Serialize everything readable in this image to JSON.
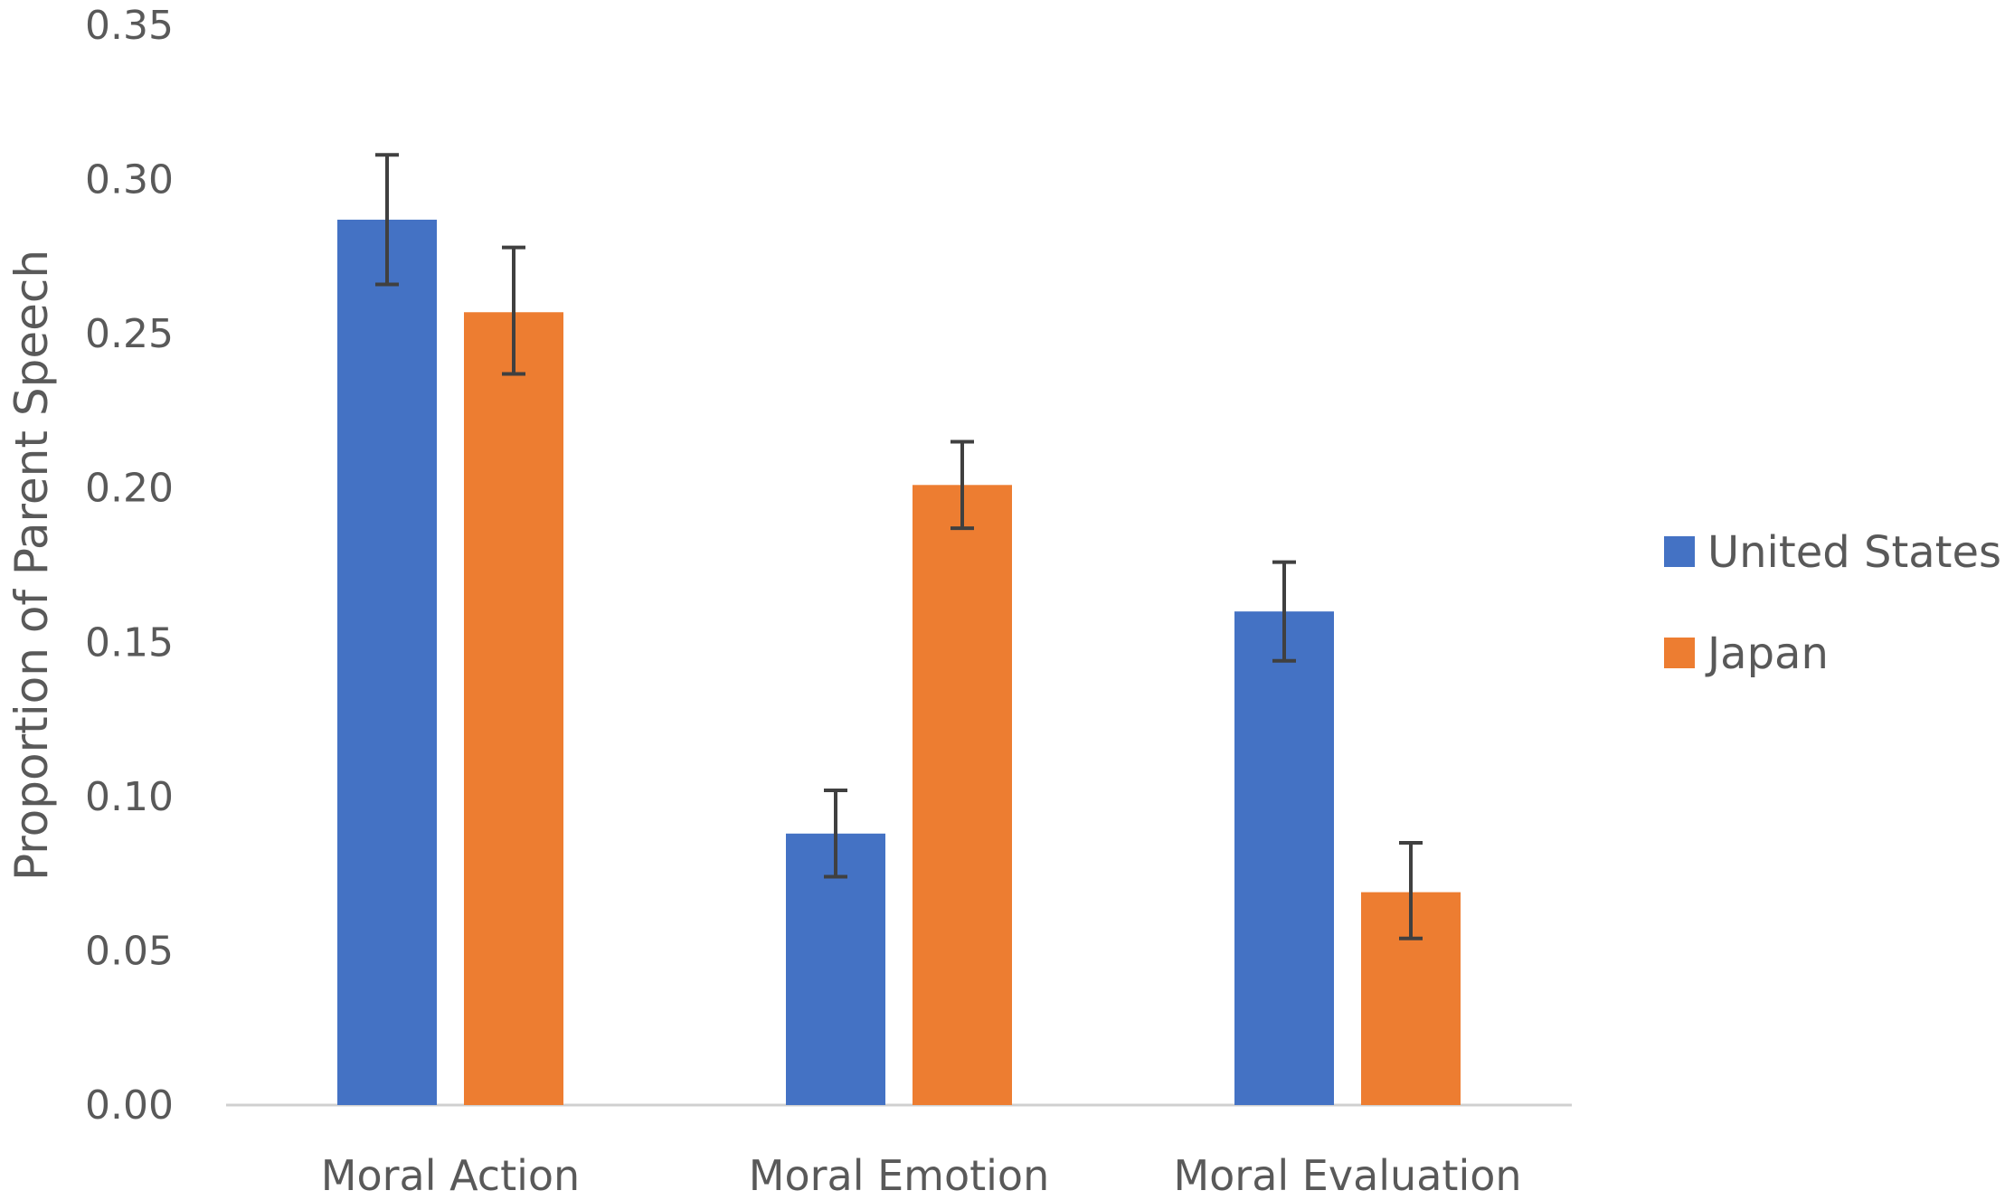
{
  "chart_data": {
    "type": "bar",
    "title": "",
    "xlabel": "",
    "ylabel": "Proportion of Parent Speech",
    "ylim": [
      0,
      0.35
    ],
    "yticks": [
      "0.00",
      "0.05",
      "0.10",
      "0.15",
      "0.20",
      "0.25",
      "0.30",
      "0.35"
    ],
    "grid": false,
    "legend_position": "right",
    "categories": [
      "Moral Action",
      "Moral Emotion",
      "Moral Evaluation"
    ],
    "series": [
      {
        "name": "United States",
        "color": "#4472C4",
        "values": [
          0.287,
          0.088,
          0.16
        ],
        "error_low": [
          0.266,
          0.074,
          0.144
        ],
        "error_high": [
          0.308,
          0.102,
          0.176
        ]
      },
      {
        "name": "Japan",
        "color": "#ED7D31",
        "values": [
          0.257,
          0.201,
          0.069
        ],
        "error_low": [
          0.237,
          0.187,
          0.054
        ],
        "error_high": [
          0.278,
          0.215,
          0.085
        ]
      }
    ]
  }
}
